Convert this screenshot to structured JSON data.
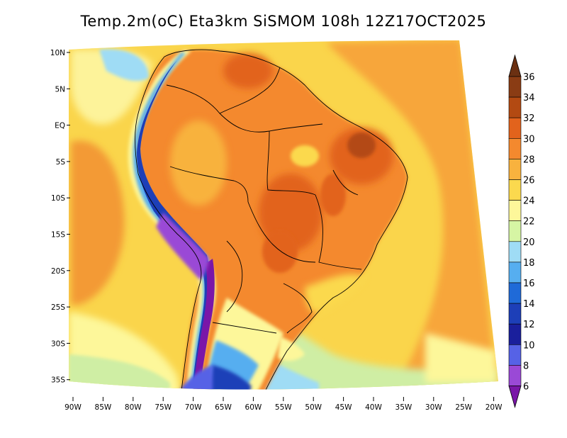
{
  "title": "Temp.2m(oC) Eta3km SiSMOM 108h 12Z17OCT2025",
  "map": {
    "region": "South America",
    "lon_range": [
      -90,
      -20
    ],
    "lat_range": [
      -37,
      12
    ]
  },
  "axes": {
    "lat_labels": [
      "10N",
      "5N",
      "EQ",
      "5S",
      "10S",
      "15S",
      "20S",
      "25S",
      "30S",
      "35S"
    ],
    "lon_labels": [
      "90W",
      "85W",
      "80W",
      "75W",
      "70W",
      "65W",
      "60W",
      "55W",
      "50W",
      "45W",
      "40W",
      "35W",
      "30W",
      "25W",
      "20W"
    ]
  },
  "colorbar": {
    "labels": [
      "36",
      "34",
      "32",
      "30",
      "28",
      "26",
      "24",
      "22",
      "20",
      "18",
      "16",
      "14",
      "12",
      "10",
      "8",
      "6"
    ],
    "colors": {
      "above_36": "#6b3012",
      "34_36": "#8a3c14",
      "32_34": "#b34a12",
      "30_32": "#e2631c",
      "28_30": "#f4892e",
      "26_28": "#f8b23e",
      "24_26": "#fbd94e",
      "22_24": "#fdf79a",
      "20_22": "#d6f5a4",
      "18_20": "#9fdcf5",
      "16_18": "#56aef0",
      "14_16": "#1f6ad8",
      "12_14": "#1d3fb8",
      "10_12": "#1a1f9c",
      "8_10": "#5662e6",
      "6_8": "#9a49d6",
      "below_6": "#7a16a8"
    }
  }
}
